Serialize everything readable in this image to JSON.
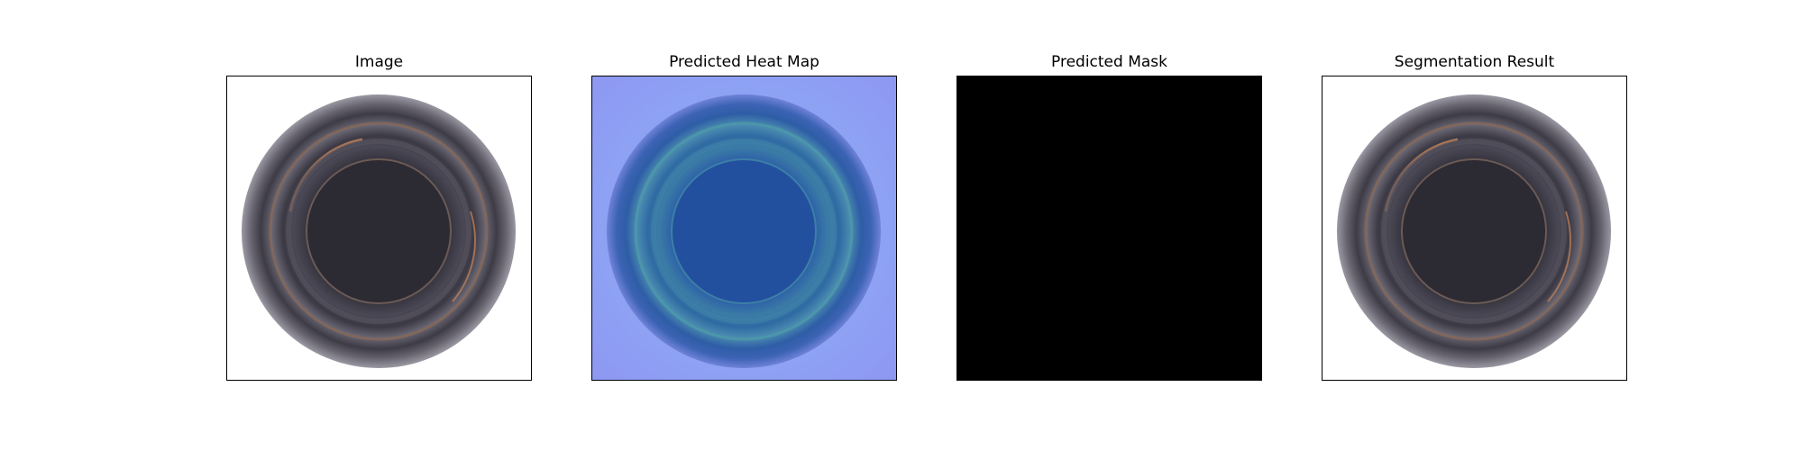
{
  "panels": [
    {
      "title": "Image",
      "content": "bottle-mouth-photo"
    },
    {
      "title": "Predicted Heat Map",
      "content": "heatmap-overlay"
    },
    {
      "title": "Predicted Mask",
      "content": "mask-empty"
    },
    {
      "title": "Segmentation Result",
      "content": "bottle-mouth-photo"
    }
  ],
  "colors": {
    "background": "#ffffff",
    "frame": "#000000",
    "mask": "#000000",
    "heatmap_base": "#8aa0f4",
    "glass_dark": "#2a2830",
    "glass_rim": "#5d5a66",
    "rim_glint": "#c8865a"
  }
}
